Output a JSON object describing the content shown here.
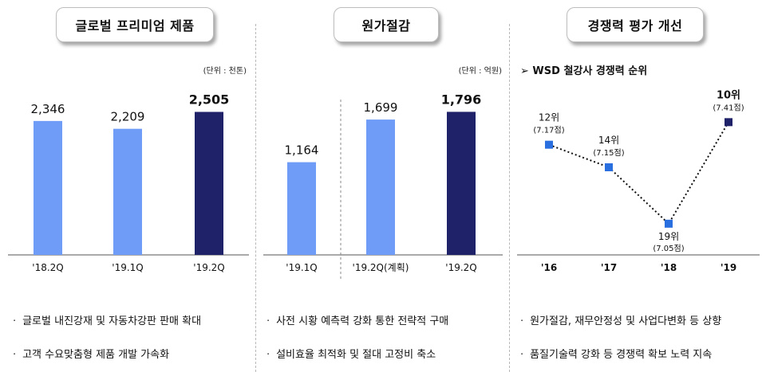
{
  "panels": [
    {
      "title": "글로벌 프리미엄 제품",
      "unit": "(단위 : 천톤)",
      "bullets": [
        "ㆍ 글로벌 내진강재 및 자동차강판 판매 확대",
        "ㆍ 고객 수요맞춤형 제품 개발 가속화"
      ]
    },
    {
      "title": "원가절감",
      "unit": "(단위 : 억원)",
      "bullets": [
        "ㆍ 사전 시황 예측력 강화 통한 전략적 구매",
        "ㆍ 설비효율 최적화 및 절대 고정비 축소"
      ]
    },
    {
      "title": "경쟁력 평가 개선",
      "subtitle": "➢ WSD 철강사 경쟁력 순위",
      "bullets": [
        "ㆍ 원가절감, 재무안정성 및 사업다변화 등 상향",
        "ㆍ 품질기술력 강화 등 경쟁력 확보 노력 지속"
      ]
    }
  ],
  "colors": {
    "light_bar": "#6f9cf7",
    "dark_bar": "#1f2268",
    "marker": "#2a6fe0",
    "marker_last": "#1f2268"
  },
  "chart_data": [
    {
      "type": "bar",
      "categories": [
        "'18.2Q",
        "'19.1Q",
        "'19.2Q"
      ],
      "values": [
        2346,
        2209,
        2505
      ],
      "labels": [
        "2,346",
        "2,209",
        "2,505"
      ],
      "bold_last": true,
      "ylim": [
        0,
        3000
      ]
    },
    {
      "type": "bar",
      "categories": [
        "'19.1Q",
        "'19.2Q(계획)",
        "'19.2Q"
      ],
      "values": [
        1164,
        1699,
        1796
      ],
      "labels": [
        "1,164",
        "1,699",
        "1,796"
      ],
      "bold_last": true,
      "ylim": [
        0,
        2150
      ]
    },
    {
      "type": "line",
      "categories": [
        "'16",
        "'17",
        "'18",
        "'19"
      ],
      "values": [
        12,
        14,
        19,
        10
      ],
      "rank_labels": [
        "12위",
        "14위",
        "19위",
        "10위"
      ],
      "score_labels": [
        "(7.17점)",
        "(7.15점)",
        "(7.05점)",
        "(7.41점)"
      ],
      "y_reversed": true,
      "ylim": [
        8,
        20
      ]
    }
  ]
}
